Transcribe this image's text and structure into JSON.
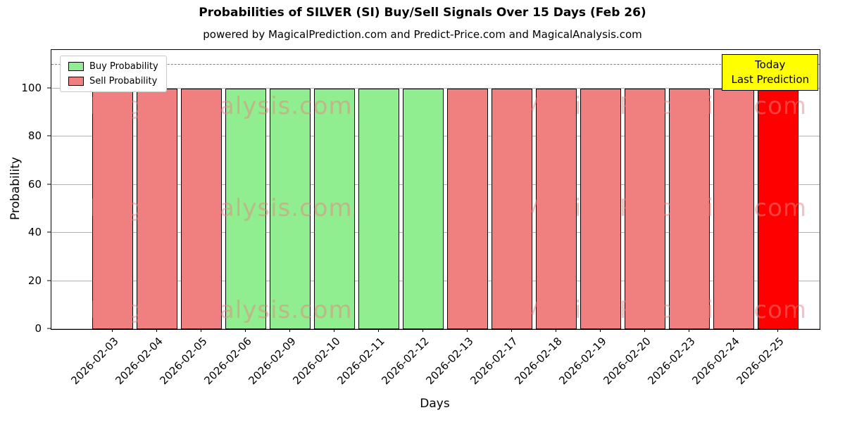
{
  "title": "Probabilities of SILVER (SI) Buy/Sell Signals Over 15 Days (Feb 26)",
  "subtitle": "powered by MagicalPrediction.com and Predict-Price.com and MagicalAnalysis.com",
  "legend": {
    "buy_label": "Buy Probability",
    "sell_label": "Sell Probability"
  },
  "today_box": {
    "line1": "Today",
    "line2": "Last Prediction"
  },
  "watermark": {
    "left_text": "MagicalAnalysis.com",
    "right_text": "Magica Prediction.com"
  },
  "colors": {
    "buy": "#90ee90",
    "sell": "#f08080",
    "today": "#ff0000",
    "today_box_bg": "#ffff00",
    "grid": "#b0b0b0",
    "dashed_line": "#7f7f7f",
    "watermark": "rgba(240,128,128,0.5)"
  },
  "chart_data": {
    "type": "bar",
    "title": "Probabilities of SILVER (SI) Buy/Sell Signals Over 15 Days (Feb 26)",
    "xlabel": "Days",
    "ylabel": "Probability",
    "ylim": [
      0,
      116
    ],
    "yticks": [
      0,
      20,
      40,
      60,
      80,
      100
    ],
    "dashed_line_y": 110,
    "grid": true,
    "legend_position": "upper left",
    "categories": [
      "2026-02-03",
      "2026-02-04",
      "2026-02-05",
      "2026-02-06",
      "2026-02-09",
      "2026-02-10",
      "2026-02-11",
      "2026-02-12",
      "2026-02-13",
      "2026-02-17",
      "2026-02-18",
      "2026-02-19",
      "2026-02-20",
      "2026-02-23",
      "2026-02-24",
      "2026-02-25"
    ],
    "values": [
      100,
      100,
      100,
      100,
      100,
      100,
      100,
      100,
      100,
      100,
      100,
      100,
      100,
      100,
      100,
      100
    ],
    "bar_types": [
      "sell",
      "sell",
      "sell",
      "buy",
      "buy",
      "buy",
      "buy",
      "buy",
      "sell",
      "sell",
      "sell",
      "sell",
      "sell",
      "sell",
      "sell",
      "today"
    ],
    "series": [
      {
        "name": "Buy Probability",
        "values": [
          0,
          0,
          0,
          100,
          100,
          100,
          100,
          100,
          0,
          0,
          0,
          0,
          0,
          0,
          0,
          0
        ]
      },
      {
        "name": "Sell Probability",
        "values": [
          100,
          100,
          100,
          0,
          0,
          0,
          0,
          0,
          100,
          100,
          100,
          100,
          100,
          100,
          100,
          100
        ]
      }
    ]
  }
}
